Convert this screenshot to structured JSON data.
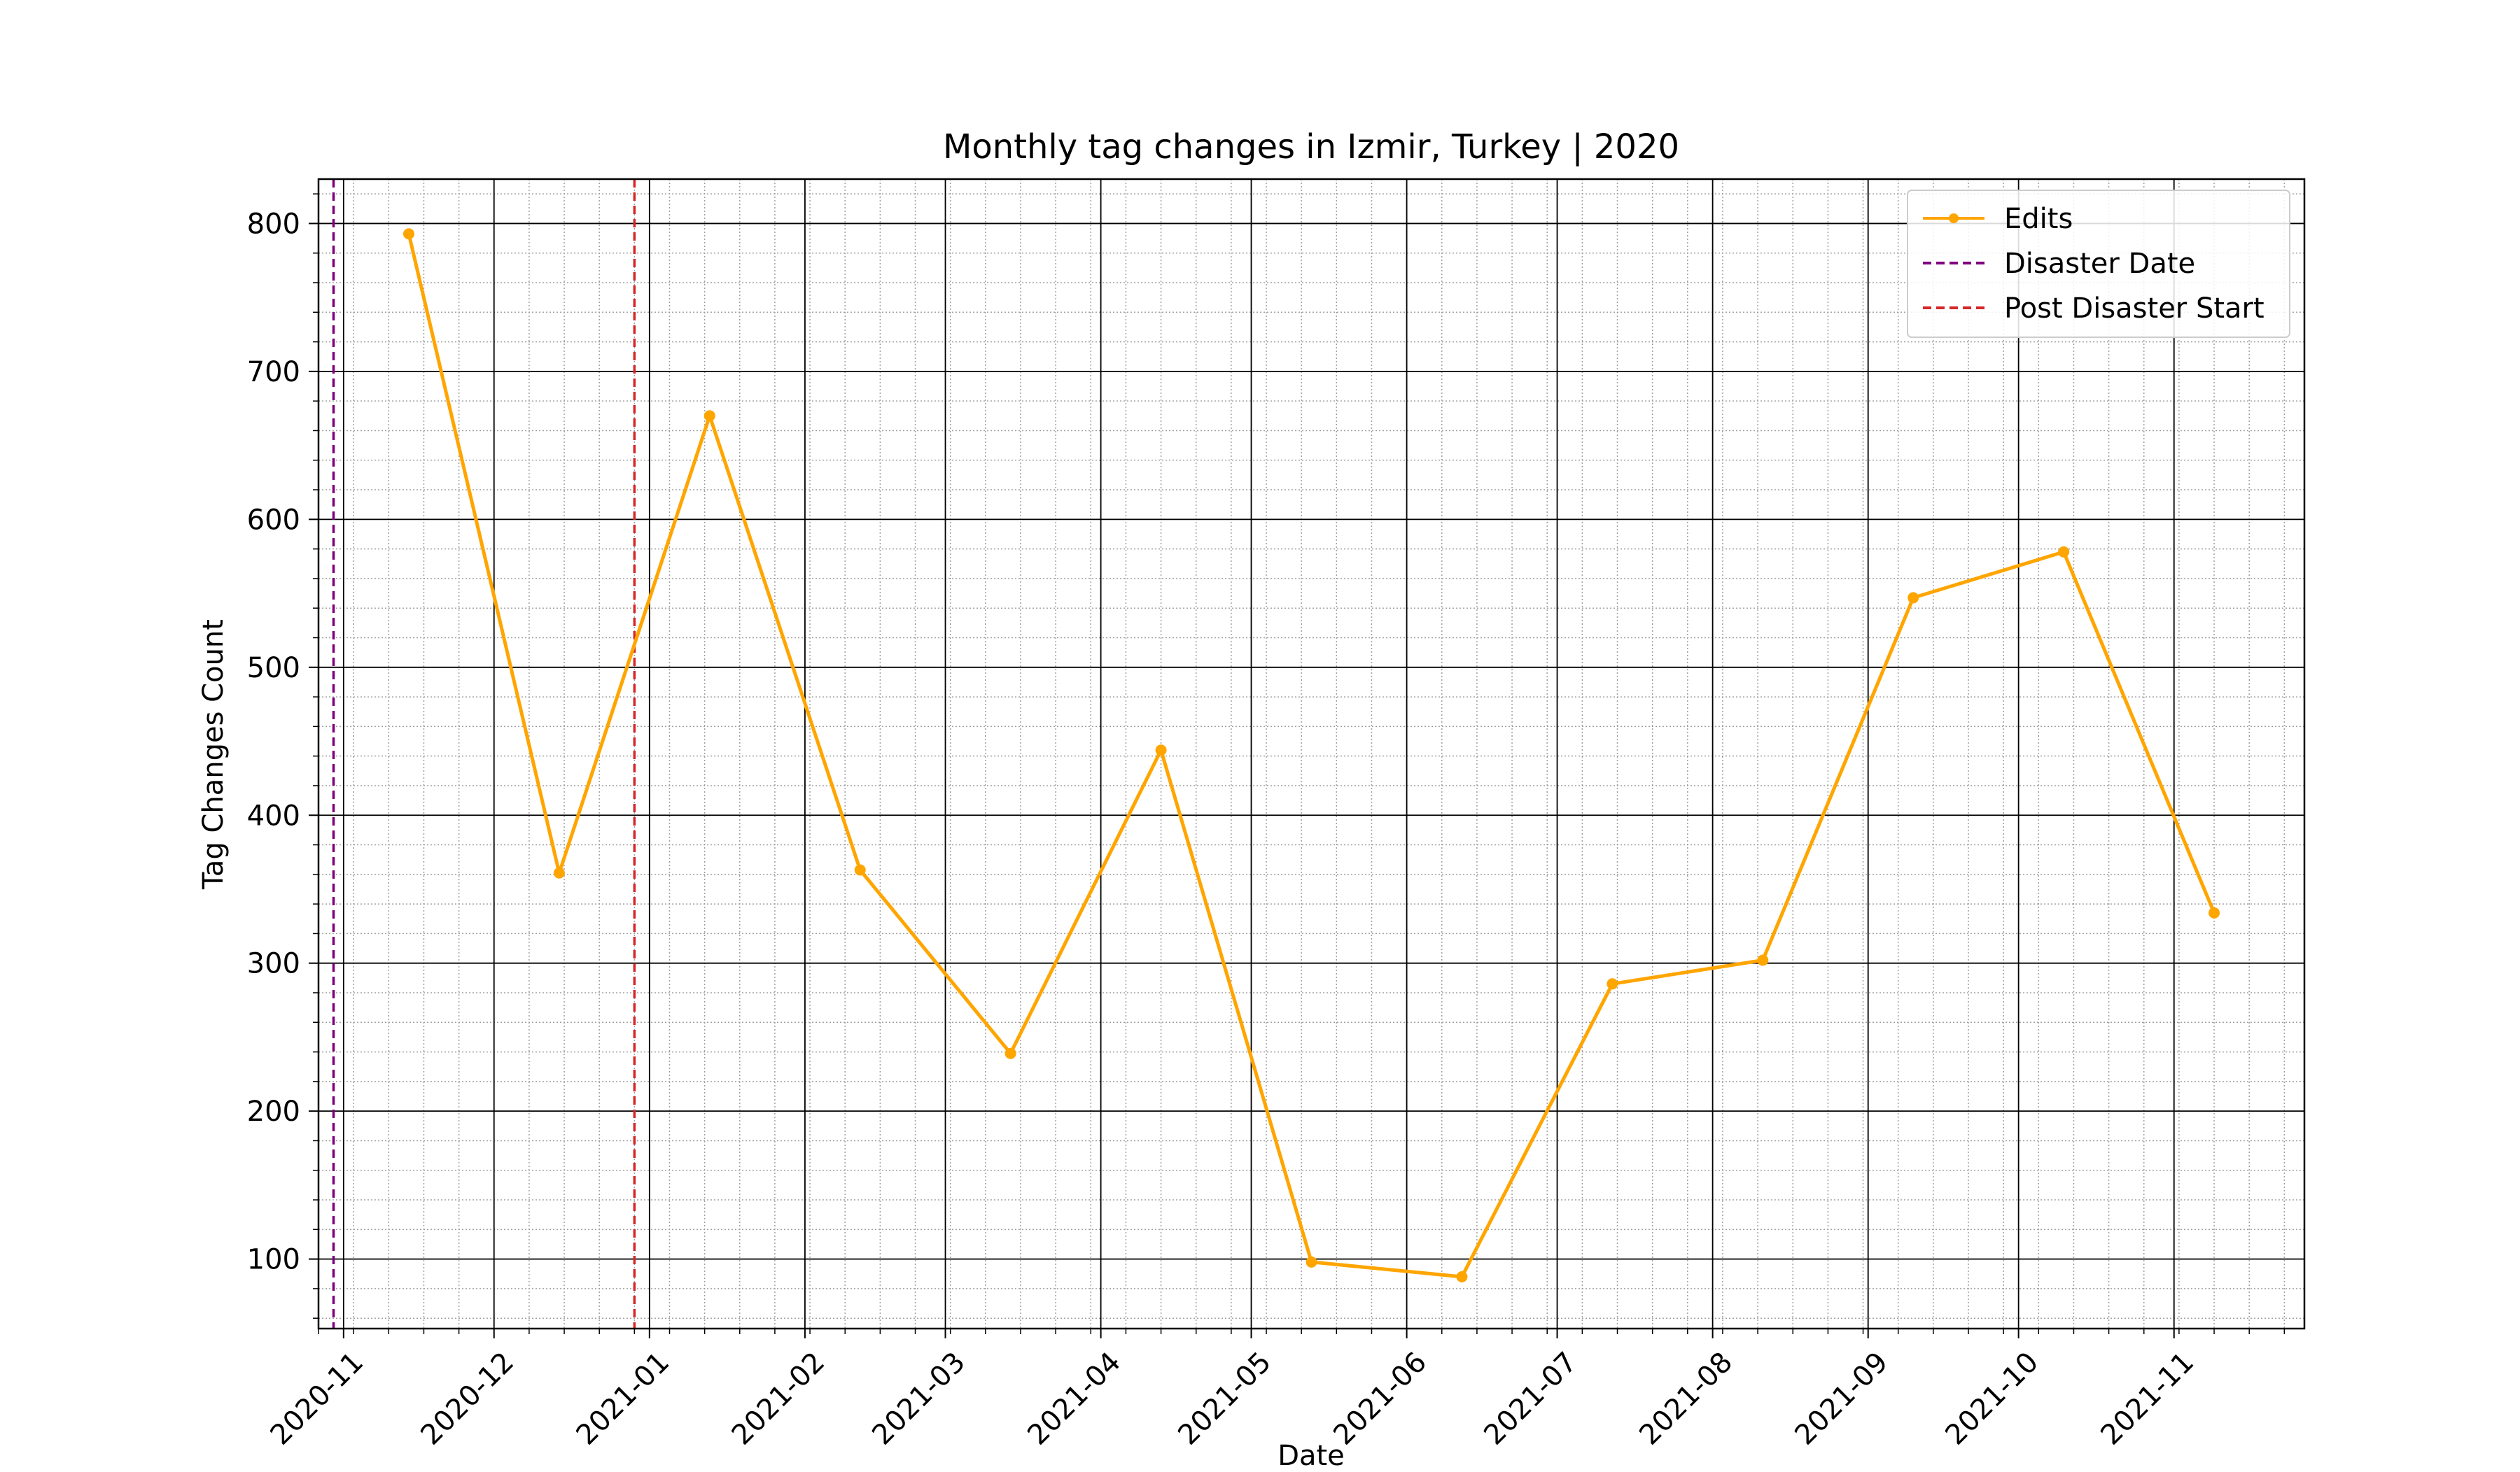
{
  "chart_data": {
    "type": "line",
    "title": "Monthly tag changes in Izmir, Turkey | 2020",
    "xlabel": "Date",
    "ylabel": "Tag Changes Count",
    "x_axis_type": "date",
    "xlim": [
      "2020-10-27",
      "2021-11-27"
    ],
    "ylim": [
      53,
      830
    ],
    "x_ticks": [
      "2020-11",
      "2020-12",
      "2021-01",
      "2021-02",
      "2021-03",
      "2021-04",
      "2021-05",
      "2021-06",
      "2021-07",
      "2021-08",
      "2021-09",
      "2021-10",
      "2021-11"
    ],
    "y_ticks": [
      100,
      200,
      300,
      400,
      500,
      600,
      700,
      800
    ],
    "grid": "major solid black, minor dotted gray",
    "legend_position": "top-right",
    "series": [
      {
        "name": "Edits",
        "color": "#FFA500",
        "marker": "circle",
        "x": [
          "2020-11-14",
          "2020-12-14",
          "2021-01-13",
          "2021-02-12",
          "2021-03-14",
          "2021-04-13",
          "2021-05-13",
          "2021-06-12",
          "2021-07-12",
          "2021-08-11",
          "2021-09-10",
          "2021-10-10",
          "2021-11-09"
        ],
        "values": [
          793,
          361,
          670,
          363,
          239,
          444,
          98,
          88,
          286,
          302,
          547,
          578,
          334
        ]
      }
    ],
    "reference_lines": [
      {
        "name": "Disaster Date",
        "x": "2020-10-30",
        "color": "#800080",
        "style": "dashed"
      },
      {
        "name": "Post Disaster Start",
        "x": "2020-12-29",
        "color": "#D62728",
        "style": "dashed"
      }
    ]
  }
}
